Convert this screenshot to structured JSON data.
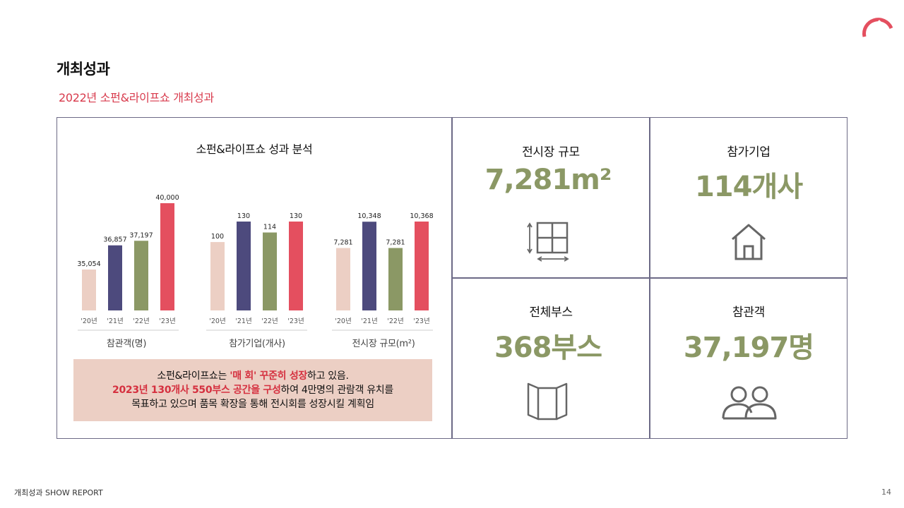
{
  "header": {
    "title": "개최성과",
    "subtitle": "2022년 소펀&라이프쇼 개최성과"
  },
  "colors": {
    "accent_red": "#e44f5f",
    "navy": "#4d4a7d",
    "olive": "#8b9865",
    "blush": "#eccfc4",
    "value_green": "#8b9865"
  },
  "chart_data": {
    "type": "bar",
    "title": "소펀&라이프쇼 성과 분석",
    "groups": [
      {
        "name": "참관객(명)",
        "categories": [
          "'20년",
          "'21년",
          "'22년",
          "'23년"
        ],
        "values": [
          35054,
          36857,
          37197,
          40000
        ],
        "value_labels": [
          "35,054",
          "36,857",
          "37,197",
          "40,000"
        ]
      },
      {
        "name": "참가기업(개사)",
        "categories": [
          "'20년",
          "'21년",
          "'22년",
          "'23년"
        ],
        "values": [
          100,
          130,
          114,
          130
        ],
        "value_labels": [
          "100",
          "130",
          "114",
          "130"
        ]
      },
      {
        "name": "전시장 규모(m²)",
        "categories": [
          "'20년",
          "'21년",
          "'22년",
          "'23년"
        ],
        "values": [
          7281,
          10348,
          7281,
          10368
        ],
        "value_labels": [
          "7,281",
          "10,348",
          "7,281",
          "10,368"
        ]
      }
    ],
    "bar_colors": [
      "#eccfc4",
      "#4d4a7d",
      "#8b9865",
      "#e44f5f"
    ]
  },
  "summary": {
    "line1_pre": "소펀&라이프쇼는 ",
    "line1_hl": "'매 회' 꾸준히 성장",
    "line1_post": "하고 있음.",
    "line2_hl": "2023년 130개사 550부스 공간을 구성",
    "line2_post": "하여 4만명의 관람객 유치를",
    "line3": "목표하고 있으며 품목 확장을 통해 전시회를 성장시킬 계획임"
  },
  "stats": {
    "venue": {
      "label": "전시장 규모",
      "value": "7,281m²",
      "icon": "floor-plan-icon"
    },
    "exhibitors": {
      "label": "참가기업",
      "value": "114개사",
      "icon": "house-icon"
    },
    "booths": {
      "label": "전체부스",
      "value": "368부스",
      "icon": "booth-panel-icon"
    },
    "visitors": {
      "label": "참관객",
      "value": "37,197명",
      "icon": "people-icon"
    }
  },
  "footer": {
    "left": "개최성과 SHOW REPORT",
    "page": "14"
  }
}
